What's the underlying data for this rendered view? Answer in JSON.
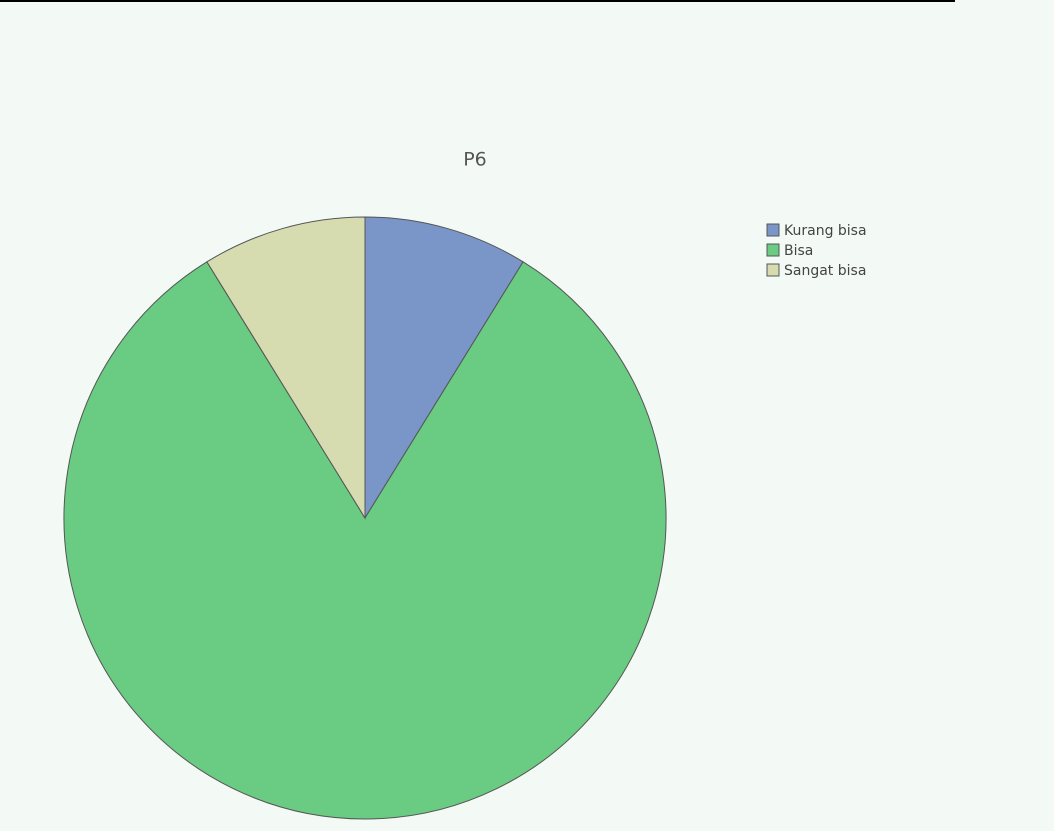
{
  "chart_data": {
    "type": "pie",
    "title": "P6",
    "series": [
      {
        "name": "Kurang bisa",
        "color": "#7a95c8",
        "values": [
          8.8
        ]
      },
      {
        "name": "Bisa",
        "color": "#6acb82",
        "values": [
          82.4
        ]
      },
      {
        "name": "Sangat bisa",
        "color": "#d6dcb0",
        "values": [
          8.8
        ]
      }
    ],
    "legend": "upper right"
  }
}
